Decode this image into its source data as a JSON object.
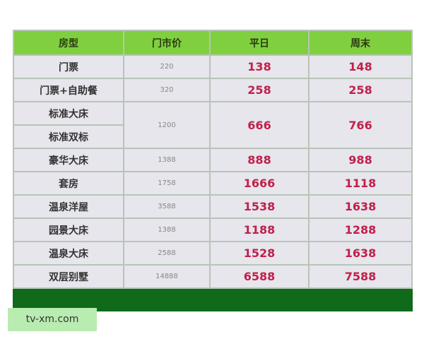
{
  "headers": [
    "房型",
    "门市价",
    "平日",
    "周末"
  ],
  "rows": [
    {
      "name": "门票",
      "list": "220",
      "weekday": "138",
      "weekend": "148"
    },
    {
      "name": "门票+自助餐",
      "list": "320",
      "weekday": "258",
      "weekend": "258"
    },
    {
      "name": "标准大床",
      "name2": "标准双标",
      "list": "1200",
      "weekday": "666",
      "weekend": "766"
    },
    {
      "name": "豪华大床",
      "list": "1388",
      "weekday": "888",
      "weekend": "988"
    },
    {
      "name": "套房",
      "list": "1758",
      "weekday": "1666",
      "weekend": "1118"
    },
    {
      "name": "温泉洋屋",
      "list": "3588",
      "weekday": "1538",
      "weekend": "1638"
    },
    {
      "name": "园景大床",
      "list": "1388",
      "weekday": "1188",
      "weekend": "1288"
    },
    {
      "name": "温泉大床",
      "list": "2588",
      "weekday": "1528",
      "weekend": "1638"
    },
    {
      "name": "双层别墅",
      "list": "14888",
      "weekday": "6588",
      "weekend": "7588"
    }
  ],
  "watermark": "tv-xm.com",
  "colors": {
    "header": "#7fcf3f",
    "footer": "#0f6a1a",
    "price": "#c0204a"
  }
}
